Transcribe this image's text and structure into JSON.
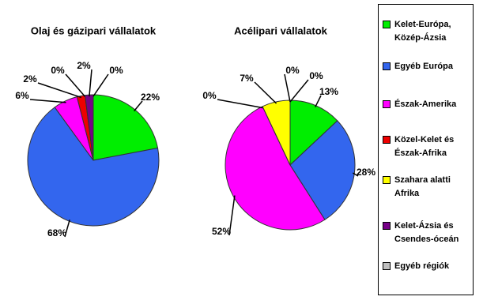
{
  "legend": [
    {
      "name": "Kelet-Európa, Közép-Ázsia",
      "color": "#00ee00"
    },
    {
      "name": "Egyéb Európa",
      "color": "#3366ee"
    },
    {
      "name": "Észak-Amerika",
      "color": "#ff00ff"
    },
    {
      "name": "Közel-Kelet és Észak-Afrika",
      "color": "#ee0000"
    },
    {
      "name": "Szahara alatti Afrika",
      "color": "#ffff00"
    },
    {
      "name": "Kelet-Ázsia és Csendes-óceán",
      "color": "#770088"
    },
    {
      "name": "Egyéb régiók",
      "color": "#c0c0c0"
    }
  ],
  "chart_data": [
    {
      "type": "pie",
      "title": "Olaj és gázipari vállalatok",
      "values": [
        22,
        68,
        6,
        2,
        0,
        2,
        0
      ],
      "value_labels": [
        "22%",
        "68%",
        "6%",
        "2%",
        "0%",
        "2%",
        "0%"
      ]
    },
    {
      "type": "pie",
      "title": "Acélipari vállalatok",
      "values": [
        13,
        28,
        52,
        0,
        7,
        0,
        0
      ],
      "value_labels": [
        "13%",
        "28%",
        "52%",
        "0%",
        "7%",
        "0%",
        "0%"
      ]
    }
  ]
}
